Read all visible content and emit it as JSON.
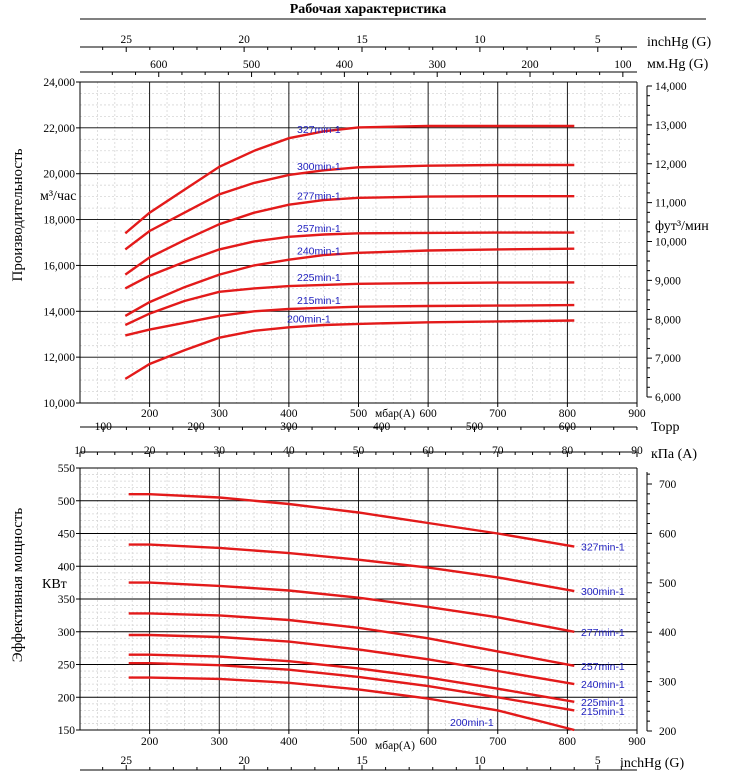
{
  "title": "Рабочая характеристика",
  "upper": {
    "ylabel": "Производительность",
    "yunit_left": "м³/час",
    "yunit_right": "фут³/мин",
    "xunit": "мбар(А)",
    "top_scale1_unit": "inchHg (G)",
    "top_scale2_unit": "мм.Hg (G)",
    "bottom_scale_unit": "Торр",
    "yticks_left": [
      "10,000",
      "12,000",
      "14,000",
      "16,000",
      "18,000",
      "20,000",
      "22,000",
      "24,000"
    ],
    "yticks_right": [
      "6,000",
      "7,000",
      "8,000",
      "9,000",
      "10,000",
      "11,000",
      "12,000",
      "13,000",
      "14,000"
    ],
    "xticks": [
      "200",
      "300",
      "400",
      "500",
      "600",
      "700",
      "800",
      "900"
    ],
    "inchhg_ticks": [
      "25",
      "20",
      "15",
      "10",
      "5"
    ],
    "mmhg_ticks": [
      "600",
      "500",
      "400",
      "300",
      "200",
      "100"
    ],
    "torr_ticks": [
      "100",
      "200",
      "300",
      "400",
      "500",
      "600"
    ]
  },
  "lower": {
    "ylabel": "Эффективная мощность",
    "yunit_left": "КВт",
    "yunit_right": "кПа (A)",
    "xunit": "мбар(А)",
    "top_scale_unit": "кПа (A)",
    "bottom_scale_unit": "inchHg (G)",
    "yticks_left": [
      "150",
      "200",
      "250",
      "300",
      "350",
      "400",
      "450",
      "500",
      "550"
    ],
    "yticks_right": [
      "200",
      "300",
      "400",
      "500",
      "600",
      "700"
    ],
    "xticks": [
      "200",
      "300",
      "400",
      "500",
      "600",
      "700",
      "800",
      "900"
    ],
    "kpa_ticks": [
      "10",
      "20",
      "30",
      "40",
      "50",
      "60",
      "70",
      "80",
      "90"
    ],
    "inchhg_ticks": [
      "25",
      "20",
      "15",
      "10",
      "5"
    ]
  },
  "chart_data": [
    {
      "type": "line",
      "title": "Рабочая характеристика",
      "xlabel": "мбар(А)",
      "ylabel": "Производительность м³/час",
      "xlim": [
        100,
        900
      ],
      "ylim": [
        10000,
        24000
      ],
      "series": [
        {
          "name": "327min-1",
          "x": [
            165,
            200,
            250,
            300,
            350,
            400,
            450,
            500,
            600,
            700,
            810
          ],
          "y": [
            17400,
            18300,
            19300,
            20300,
            21000,
            21550,
            21850,
            22020,
            22080,
            22080,
            22080
          ]
        },
        {
          "name": "300min-1",
          "x": [
            165,
            200,
            250,
            300,
            350,
            400,
            450,
            500,
            600,
            700,
            810
          ],
          "y": [
            16700,
            17500,
            18300,
            19100,
            19600,
            19950,
            20150,
            20280,
            20350,
            20380,
            20380
          ]
        },
        {
          "name": "277min-1",
          "x": [
            165,
            200,
            250,
            300,
            350,
            400,
            450,
            500,
            600,
            700,
            810
          ],
          "y": [
            15600,
            16350,
            17100,
            17800,
            18300,
            18650,
            18850,
            18950,
            19000,
            19020,
            19020
          ]
        },
        {
          "name": "257min-1",
          "x": [
            165,
            200,
            250,
            300,
            350,
            400,
            450,
            500,
            600,
            700,
            810
          ],
          "y": [
            15000,
            15550,
            16150,
            16700,
            17050,
            17250,
            17350,
            17400,
            17420,
            17430,
            17430
          ]
        },
        {
          "name": "240min-1",
          "x": [
            165,
            200,
            250,
            300,
            350,
            400,
            450,
            500,
            600,
            700,
            810
          ],
          "y": [
            13800,
            14400,
            15050,
            15600,
            16000,
            16250,
            16450,
            16550,
            16650,
            16700,
            16730
          ]
        },
        {
          "name": "225min-1",
          "x": [
            165,
            200,
            250,
            300,
            350,
            400,
            450,
            500,
            600,
            700,
            810
          ],
          "y": [
            13400,
            13900,
            14450,
            14850,
            15000,
            15100,
            15150,
            15200,
            15230,
            15250,
            15260
          ]
        },
        {
          "name": "215min-1",
          "x": [
            165,
            200,
            250,
            300,
            350,
            400,
            450,
            500,
            600,
            700,
            810
          ],
          "y": [
            12950,
            13200,
            13500,
            13800,
            14000,
            14100,
            14150,
            14200,
            14230,
            14250,
            14270
          ]
        },
        {
          "name": "200min-1",
          "x": [
            165,
            200,
            250,
            300,
            350,
            400,
            450,
            500,
            600,
            700,
            810
          ],
          "y": [
            11050,
            11700,
            12300,
            12850,
            13150,
            13300,
            13400,
            13450,
            13520,
            13560,
            13600
          ]
        }
      ]
    },
    {
      "type": "line",
      "xlabel": "мбар(А)",
      "ylabel": "Эффективная мощность КВт",
      "xlim": [
        100,
        900
      ],
      "ylim": [
        150,
        550
      ],
      "series": [
        {
          "name": "327min-1",
          "x": [
            170,
            200,
            300,
            400,
            500,
            600,
            700,
            810
          ],
          "y": [
            510,
            510,
            505,
            495,
            482,
            466,
            450,
            430
          ]
        },
        {
          "name": "300min-1",
          "x": [
            170,
            200,
            300,
            400,
            500,
            600,
            700,
            810
          ],
          "y": [
            433,
            433,
            428,
            420,
            410,
            398,
            383,
            362
          ]
        },
        {
          "name": "277min-1",
          "x": [
            170,
            200,
            300,
            400,
            500,
            600,
            700,
            810
          ],
          "y": [
            375,
            375,
            370,
            363,
            352,
            338,
            322,
            300
          ]
        },
        {
          "name": "257min-1",
          "x": [
            170,
            200,
            300,
            400,
            500,
            600,
            700,
            810
          ],
          "y": [
            328,
            328,
            325,
            318,
            306,
            290,
            270,
            248
          ]
        },
        {
          "name": "240min-1",
          "x": [
            170,
            200,
            300,
            400,
            500,
            600,
            700,
            810
          ],
          "y": [
            295,
            295,
            292,
            285,
            273,
            258,
            240,
            220
          ]
        },
        {
          "name": "225min-1",
          "x": [
            170,
            200,
            300,
            400,
            500,
            600,
            700,
            810
          ],
          "y": [
            265,
            265,
            262,
            255,
            244,
            230,
            213,
            193
          ]
        },
        {
          "name": "215min-1",
          "x": [
            170,
            200,
            300,
            400,
            500,
            600,
            700,
            810
          ],
          "y": [
            252,
            252,
            249,
            242,
            231,
            217,
            200,
            180
          ]
        },
        {
          "name": "200min-1",
          "x": [
            170,
            200,
            300,
            400,
            500,
            600,
            700,
            810
          ],
          "y": [
            230,
            230,
            228,
            222,
            212,
            198,
            180,
            150
          ]
        }
      ]
    }
  ]
}
